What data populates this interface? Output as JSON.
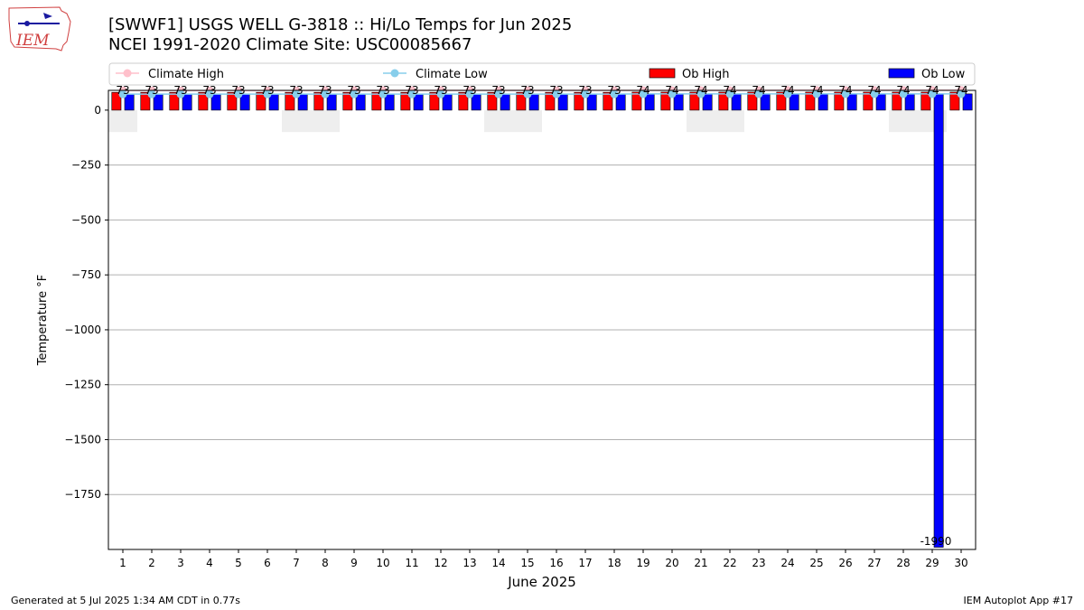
{
  "header": {
    "title_line1": "[SWWF1] USGS WELL G-3818 :: Hi/Lo Temps for Jun 2025",
    "title_line2": "NCEI 1991-2020 Climate Site: USC00085667"
  },
  "logo": {
    "text": "IEM"
  },
  "footer": {
    "generated": "Generated at 5 Jul 2025 1:34 AM CDT in 0.77s",
    "app": "IEM Autoplot App #17"
  },
  "colors": {
    "ob_high": "#ff0000",
    "ob_low": "#0000ff",
    "climate_high": "#ffc0cb",
    "climate_low": "#87ceeb",
    "weekend_shade": "#eeeeee",
    "grid": "#b0b0b0"
  },
  "chart_data": {
    "type": "bar",
    "xlabel": "June 2025",
    "ylabel": "Temperature °F",
    "ylim": [
      -2000,
      90
    ],
    "yticks": [
      0,
      -250,
      -500,
      -750,
      -1000,
      -1250,
      -1500,
      -1750
    ],
    "ytick_labels": [
      "0",
      "−250",
      "−500",
      "−750",
      "−1000",
      "−1250",
      "−1500",
      "−1750"
    ],
    "grid": "horizontal",
    "legend_position": "top",
    "categories": [
      "1",
      "2",
      "3",
      "4",
      "5",
      "6",
      "7",
      "8",
      "9",
      "10",
      "11",
      "12",
      "13",
      "14",
      "15",
      "16",
      "17",
      "18",
      "19",
      "20",
      "21",
      "22",
      "23",
      "24",
      "25",
      "26",
      "27",
      "28",
      "29",
      "30"
    ],
    "series": [
      {
        "name": "Ob High",
        "kind": "bar",
        "values": [
          null,
          null,
          null,
          null,
          null,
          null,
          null,
          null,
          null,
          null,
          null,
          null,
          null,
          null,
          null,
          null,
          null,
          null,
          null,
          null,
          null,
          null,
          null,
          null,
          null,
          null,
          null,
          null,
          null,
          null
        ]
      },
      {
        "name": "Ob Low",
        "kind": "bar",
        "values": [
          null,
          null,
          null,
          null,
          null,
          null,
          null,
          null,
          null,
          null,
          null,
          null,
          null,
          null,
          null,
          null,
          null,
          null,
          null,
          null,
          null,
          null,
          null,
          null,
          null,
          null,
          null,
          null,
          -1990,
          null
        ]
      },
      {
        "name": "Climate High",
        "kind": "line",
        "values": [
          89,
          89,
          89,
          89,
          89,
          89,
          89,
          90,
          90,
          90,
          90,
          90,
          90,
          90,
          90,
          90,
          90,
          90,
          90,
          90,
          90,
          90,
          90,
          91,
          91,
          91,
          91,
          91,
          91,
          91
        ]
      },
      {
        "name": "Climate Low",
        "kind": "line",
        "values": [
          73,
          73,
          73,
          73,
          73,
          73,
          73,
          73,
          73,
          73,
          73,
          73,
          73,
          73,
          73,
          73,
          73,
          73,
          74,
          74,
          74,
          74,
          74,
          74,
          74,
          74,
          74,
          74,
          74,
          74
        ]
      }
    ],
    "top_labels": [
      "73",
      "73",
      "73",
      "73",
      "73",
      "73",
      "73",
      "73",
      "73",
      "73",
      "73",
      "73",
      "73",
      "73",
      "73",
      "73",
      "73",
      "73",
      "74",
      "74",
      "74",
      "74",
      "74",
      "74",
      "74",
      "74",
      "74",
      "74",
      "74",
      "74"
    ],
    "weekend_days": [
      1,
      7,
      8,
      14,
      15,
      21,
      22,
      28,
      29
    ],
    "annotations": [
      {
        "day": 29,
        "text": "-1990"
      }
    ]
  }
}
